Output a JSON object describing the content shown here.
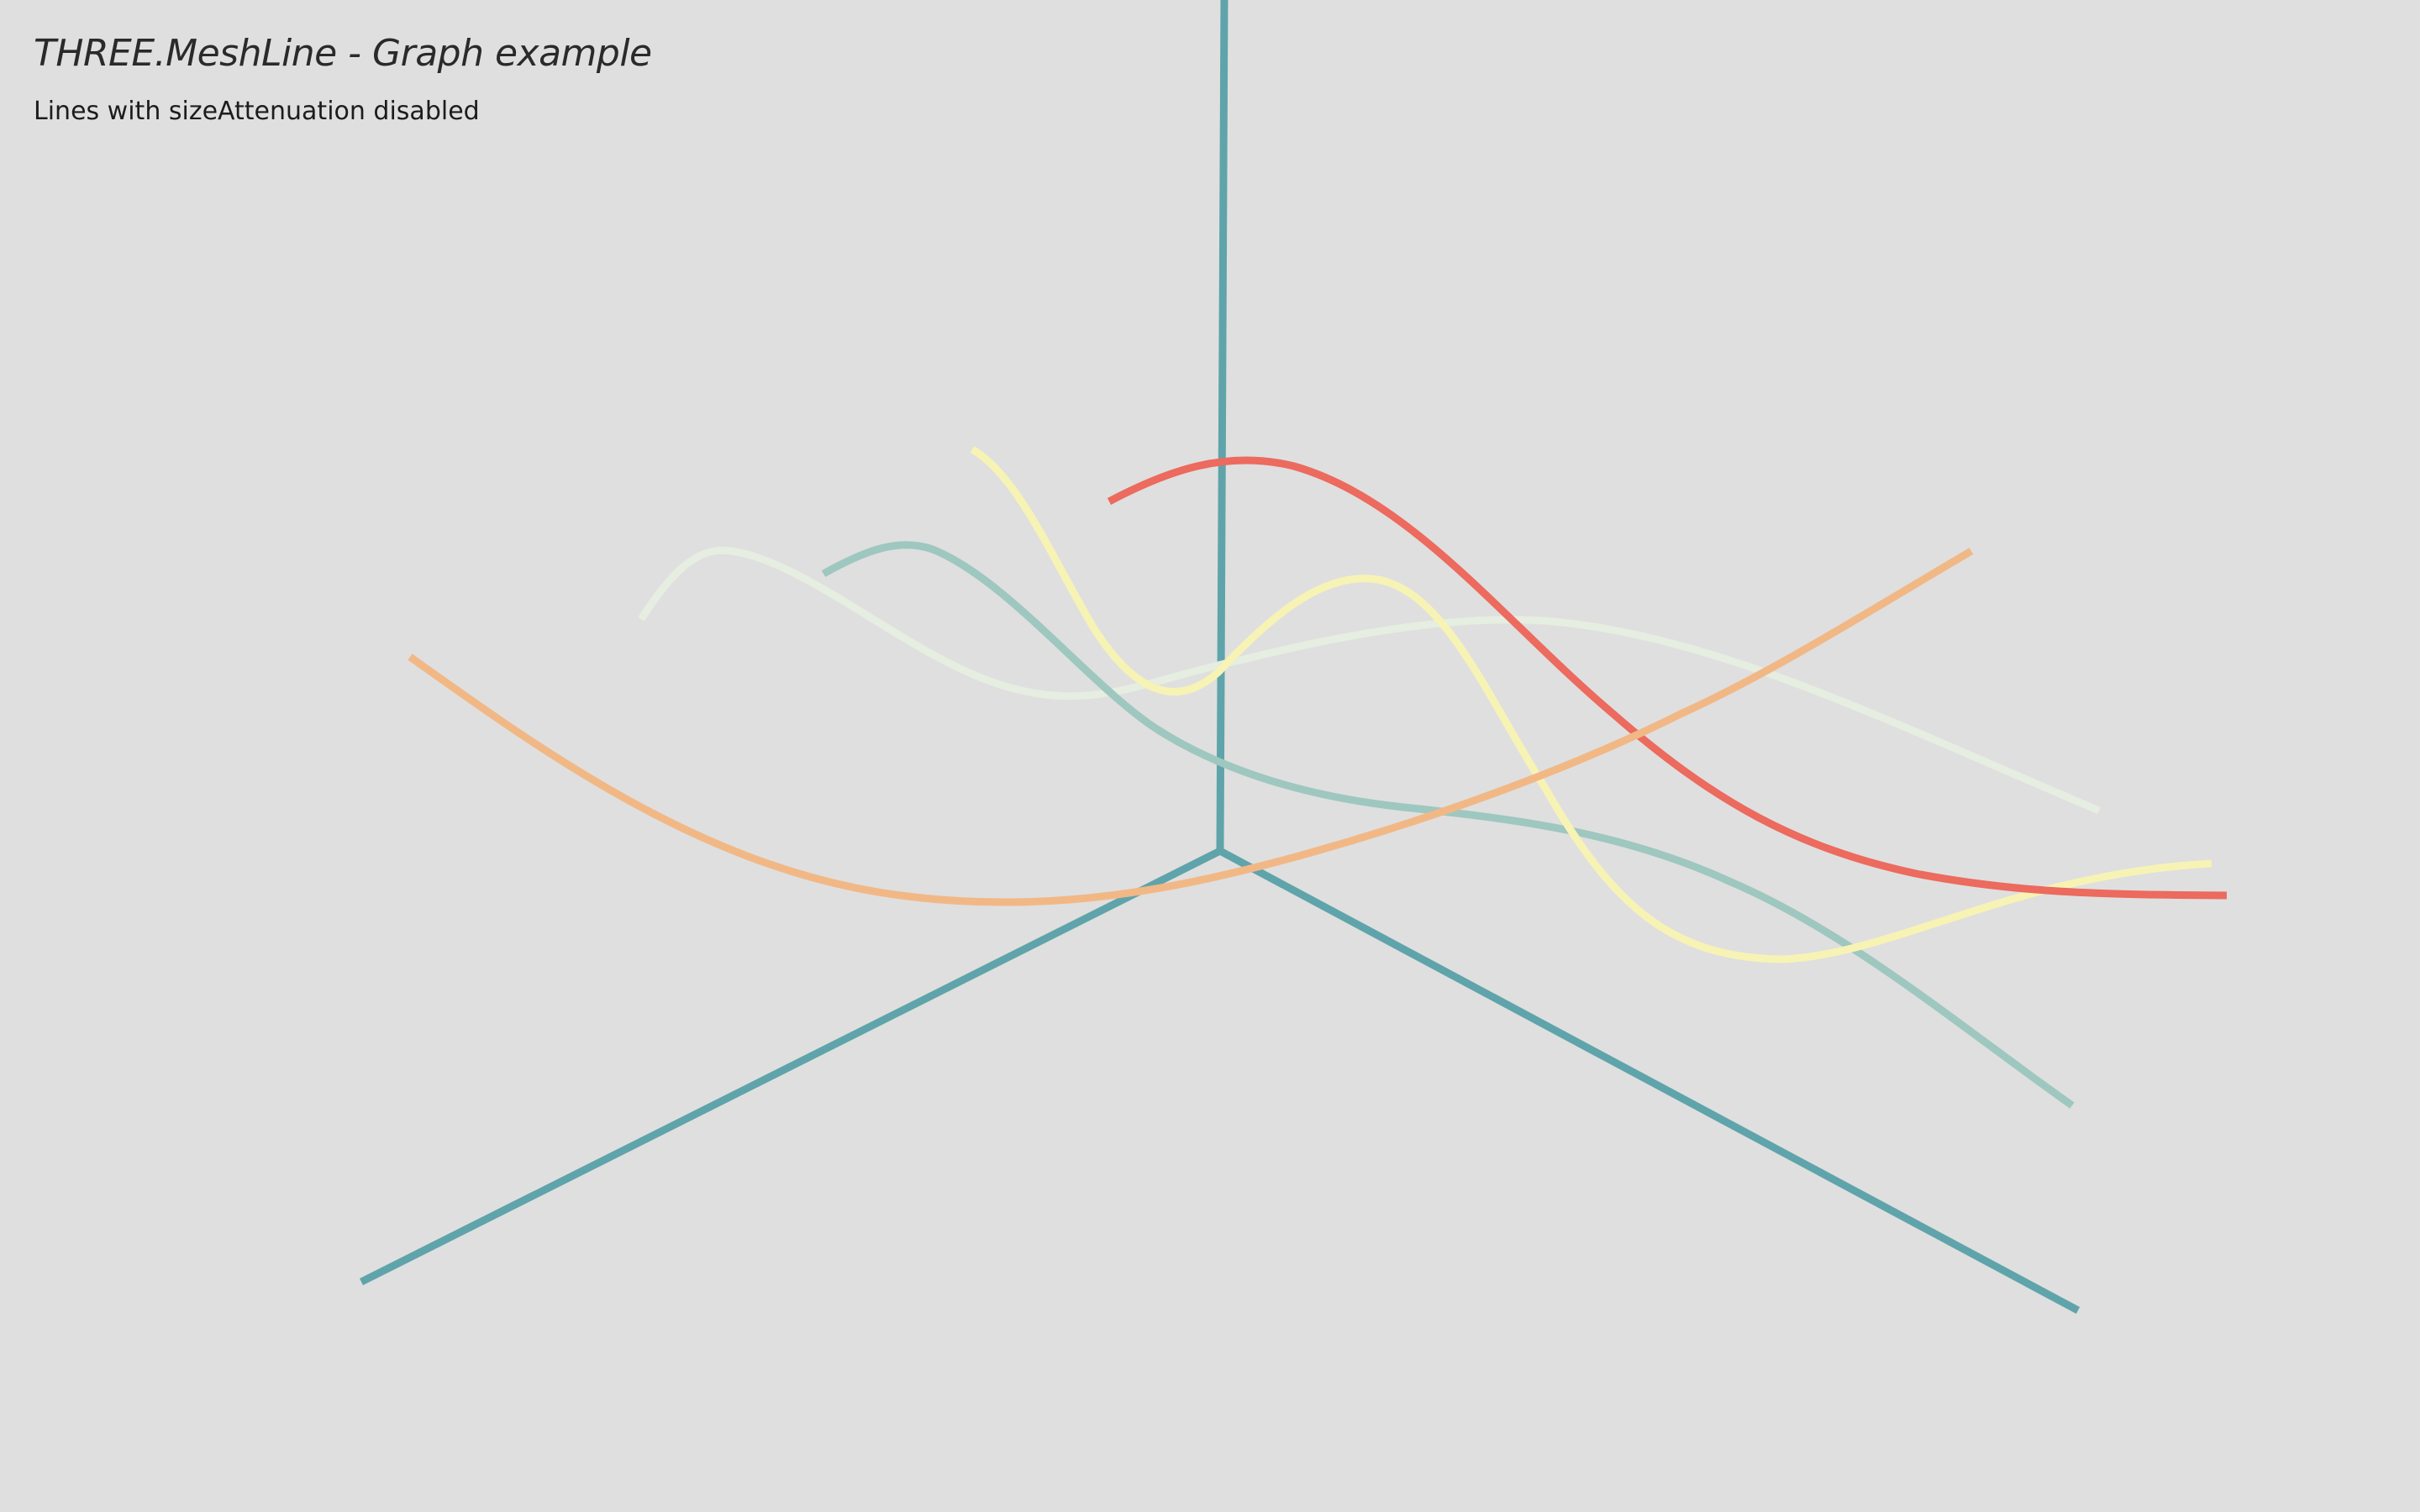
{
  "page": {
    "title": "THREE.MeshLine - Graph example",
    "subtitle": "Lines with sizeAttenuation disabled",
    "background": "#dfdfdf"
  },
  "colors": {
    "axis": "#5fa4aa",
    "red": "#ec6a5e",
    "orange": "#f1b886",
    "yellow": "#f7f3b4",
    "teal_light": "#9ec7bf",
    "pale_green": "#e6ede1"
  }
}
